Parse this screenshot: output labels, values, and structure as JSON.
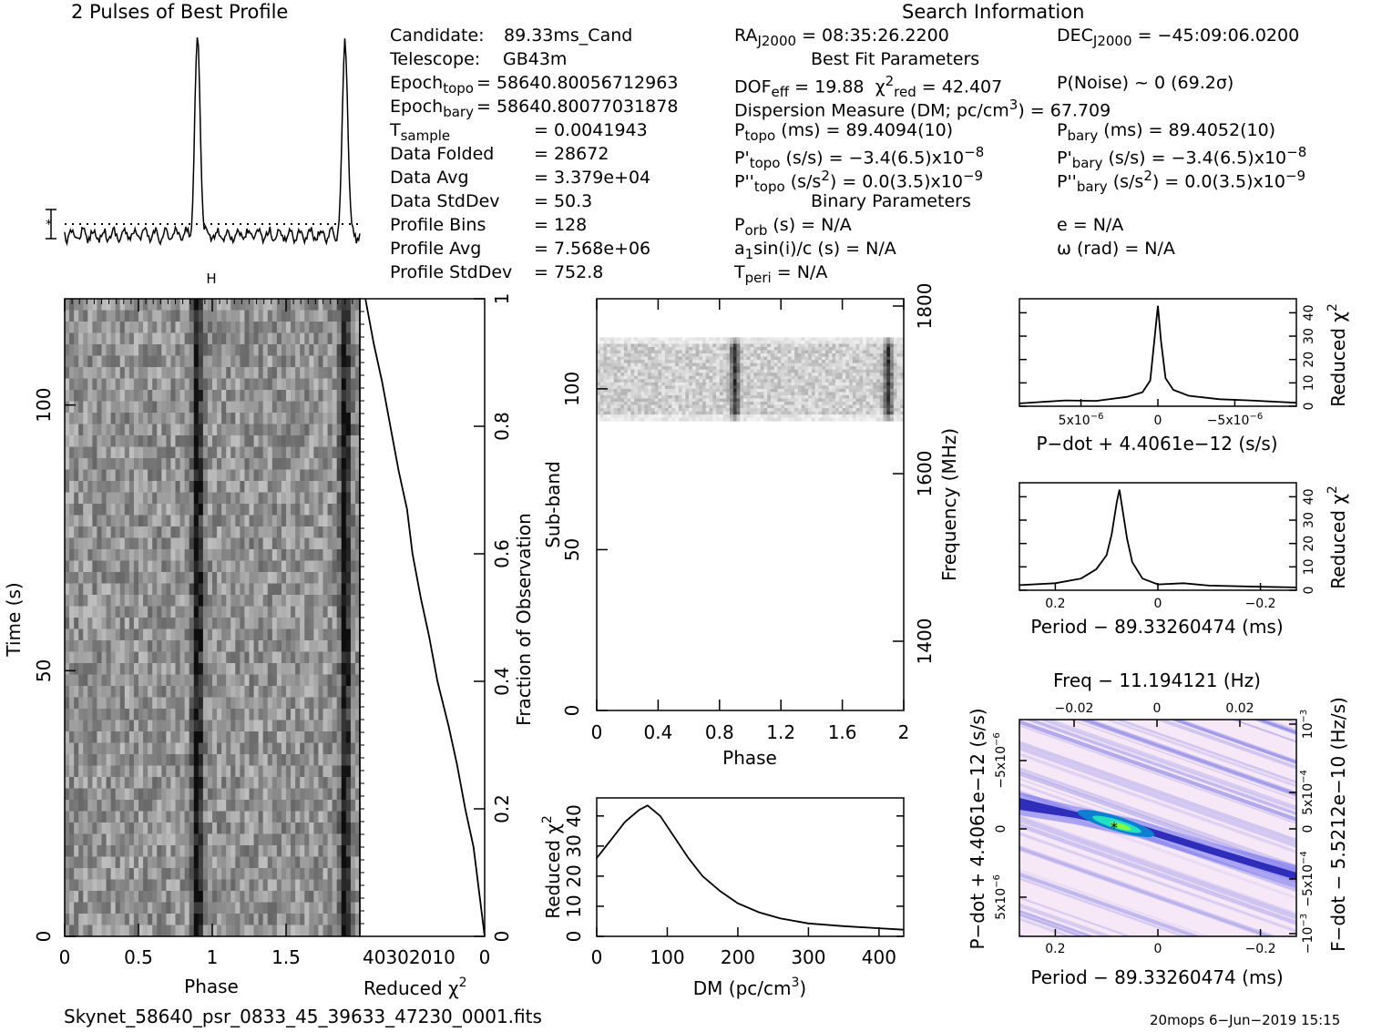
{
  "profile_title": "2 Pulses of Best Profile",
  "search_title": "Search Information",
  "info_left": [
    {
      "label": "Candidate:",
      "value": "89.33ms_Cand"
    },
    {
      "label": "Telescope:",
      "value": "GB43m"
    },
    {
      "label": "Epoch",
      "sub": "topo",
      "value": "= 58640.80056712963"
    },
    {
      "label": "Epoch",
      "sub": "bary",
      "value": "= 58640.80077031878"
    },
    {
      "label": "T",
      "sub": "sample",
      "value": "=   0.0041943"
    },
    {
      "label": "Data Folded",
      "value": "=   28672"
    },
    {
      "label": "Data Avg",
      "value": "=   3.379e+04"
    },
    {
      "label": "Data StdDev",
      "value": "=   50.3"
    },
    {
      "label": "Profile Bins",
      "value": "=   128"
    },
    {
      "label": "Profile Avg",
      "value": "=   7.568e+06"
    },
    {
      "label": "Profile StdDev",
      "value": "=   752.8"
    }
  ],
  "info_mid": {
    "ra": "RA",
    "ra_sub": "J2000",
    "ra_value": "= 08:35:26.2200",
    "dec": "DEC",
    "dec_sub": "J2000",
    "dec_value": "= −45:09:06.0200",
    "best_fit_title": "Best Fit Parameters",
    "dof": "DOF",
    "dof_sub": "eff",
    "dof_value": "= 19.88",
    "chi": "χ",
    "chi_sup": "2",
    "chi_sub": "red",
    "chi_value": "= 42.407",
    "pnoise": "P(Noise) ~ 0    (69.2σ)",
    "dm_line": "Dispersion Measure (DM; pc/cm",
    "dm_sup": "3",
    "dm_value": ") = 67.709",
    "ptopo": "P",
    "ptopo_sub": "topo",
    "ptopo_value": "(ms)  =  89.4094(10)",
    "pbary": "P",
    "pbary_sub": "bary",
    "pbary_value": "(ms)  =  89.4052(10)",
    "pdtopo": "P'",
    "pdtopo_sub": "topo",
    "pdtopo_value": "(s/s) = −3.4(6.5)x10",
    "pdtopo_exp": "−8",
    "pdbary": "P'",
    "pdbary_sub": "bary",
    "pdbary_value": "(s/s) = −3.4(6.5)x10",
    "pdbary_exp": "−8",
    "pddtopo": "P''",
    "pddtopo_sub": "topo",
    "pddtopo_value": "(s/s",
    "pddtopo_sup": "2",
    "pddtopo_rest": ") = 0.0(3.5)x10",
    "pddtopo_exp": "−9",
    "pddbary": "P''",
    "pddbary_sub": "bary",
    "pddbary_value": "(s/s",
    "pddbary_sup": "2",
    "pddbary_rest": ") = 0.0(3.5)x10",
    "pddbary_exp": "−9",
    "binary_title": "Binary Parameters",
    "porb": "P",
    "porb_sub": "orb",
    "porb_value": "(s) = N/A",
    "ecc": "e = N/A",
    "a1": "a",
    "a1_sub": "1",
    "a1_value": "sin(i)/c (s) = N/A",
    "omega": "ω (rad) = N/A",
    "tperi": "T",
    "tperi_sub": "peri",
    "tperi_value": "= N/A"
  },
  "footer_left": "Skynet_58640_psr_0833_45_39633_47230_0001.fits",
  "footer_right": "20mops   6−Jun−2019 15:15",
  "chart_data": [
    {
      "type": "line",
      "title": "2 Pulses of Best Profile",
      "x_range": [
        0,
        2
      ],
      "peak_phases": [
        0.9,
        1.9
      ],
      "baseline_marker": "dotted"
    },
    {
      "type": "heatmap",
      "name": "time-phase",
      "xlabel": "Phase",
      "ylabel": "Time (s)",
      "xlim": [
        0,
        2
      ],
      "ylim": [
        0,
        120
      ],
      "x_ticks": [
        "0",
        "0.5",
        "1",
        "1.5"
      ],
      "y_ticks": [
        "0",
        "50",
        "100"
      ],
      "pulse_phases": [
        0.9,
        1.9
      ]
    },
    {
      "type": "line",
      "name": "chi2-vs-time",
      "xlabel": "Reduced χ²",
      "ylabel": "Fraction of Observation",
      "x_tick_labels": "40302010",
      "x_tick_zero": "0",
      "y_ticks": [
        "0",
        "0.2",
        "0.4",
        "0.6",
        "0.8",
        "1"
      ],
      "x": [
        0,
        2,
        4,
        7,
        10,
        13,
        17,
        20,
        23,
        26,
        28,
        31,
        34,
        37,
        40,
        43
      ],
      "y": [
        0,
        0.07,
        0.14,
        0.2,
        0.27,
        0.33,
        0.4,
        0.47,
        0.53,
        0.6,
        0.67,
        0.73,
        0.8,
        0.87,
        0.93,
        1.0
      ]
    },
    {
      "type": "heatmap",
      "name": "subband-phase",
      "xlabel": "Phase",
      "ylabel": "Sub-band",
      "ylabel_right": "Frequency (MHz)",
      "xlim": [
        0,
        2
      ],
      "ylim": [
        0,
        128
      ],
      "x_ticks": [
        "0",
        "0.4",
        "0.8",
        "1.2",
        "1.6",
        "2"
      ],
      "y_ticks": [
        "0",
        "50",
        "100"
      ],
      "right_ticks": [
        "1400",
        "1600",
        "1800"
      ],
      "signal_band": [
        90,
        116
      ]
    },
    {
      "type": "line",
      "name": "dm-chi2",
      "xlabel": "DM (pc/cm³)",
      "ylabel": "Reduced χ²",
      "x_ticks": [
        "0",
        "100",
        "200",
        "300",
        "400"
      ],
      "y_ticks": [
        "0",
        "10",
        "20",
        "30",
        "40"
      ],
      "xlim": [
        0,
        435
      ],
      "ylim": [
        0,
        46
      ],
      "x": [
        0,
        20,
        40,
        60,
        72,
        90,
        110,
        130,
        150,
        175,
        200,
        230,
        260,
        300,
        350,
        400,
        435
      ],
      "y": [
        26,
        32,
        38,
        42,
        43.5,
        40,
        33,
        26,
        20,
        15,
        11,
        8,
        6,
        4.3,
        3.4,
        2.7,
        2.2
      ]
    },
    {
      "type": "line",
      "name": "pdot-chi2",
      "xlabel": "P−dot + 4.4061e−12 (s/s)",
      "ylabel": "Reduced χ²",
      "x_ticks": [
        "5x10",
        "0",
        "−5x10"
      ],
      "x_tick_exp": "−6",
      "y_ticks": [
        "0",
        "10",
        "20",
        "30",
        "40"
      ],
      "xlim": [
        9e-06,
        -9e-06
      ],
      "ylim": [
        0,
        46
      ],
      "x": [
        9e-06,
        6e-06,
        4e-06,
        2e-06,
        1e-06,
        5e-07,
        2e-07,
        0,
        -2e-07,
        -5e-07,
        -1e-06,
        -2e-06,
        -4e-06,
        -6e-06,
        -9e-06
      ],
      "y": [
        1.2,
        2.5,
        2.3,
        4,
        6,
        11,
        30,
        43,
        28,
        12,
        7,
        4.5,
        3,
        2.5,
        1.5
      ]
    },
    {
      "type": "line",
      "name": "period-chi2",
      "xlabel": "Period − 89.33260474 (ms)",
      "ylabel": "Reduced χ²",
      "x_ticks": [
        "0.2",
        "0",
        "−0.2"
      ],
      "y_ticks": [
        "0",
        "10",
        "20",
        "30",
        "40"
      ],
      "xlim": [
        0.27,
        -0.27
      ],
      "ylim": [
        0,
        46
      ],
      "x": [
        0.27,
        0.2,
        0.15,
        0.12,
        0.1,
        0.09,
        0.08,
        0.075,
        0.07,
        0.06,
        0.05,
        0.03,
        0.0,
        -0.05,
        -0.1,
        -0.2,
        -0.27
      ],
      "y": [
        2.2,
        3,
        5,
        9,
        15,
        24,
        38,
        43,
        36,
        22,
        12,
        5,
        2.5,
        3,
        2,
        1.5,
        1.2
      ]
    },
    {
      "type": "heatmap",
      "name": "period-pdot",
      "title": "Freq − 11.194121 (Hz)",
      "xlabel": "Period − 89.33260474 (ms)",
      "ylabel": "P−dot + 4.4061e−12 (s/s)",
      "ylabel_right": "F−dot − 5.5212e−10 (Hz/s)",
      "x_ticks": [
        "0.2",
        "0",
        "−0.2"
      ],
      "top_ticks": [
        "−0.02",
        "0",
        "0.02"
      ],
      "left_ticks": [
        "−5x10",
        "0",
        "5x10"
      ],
      "left_tick_exp": "−6",
      "right_ticks": [
        "10",
        "5x10",
        "0",
        "−5x10",
        "−10"
      ],
      "right_tick_exps": [
        "−3",
        "−4",
        "",
        "−4",
        "−3"
      ],
      "best_fit": {
        "period": 0.07,
        "pdot": 0
      }
    }
  ]
}
